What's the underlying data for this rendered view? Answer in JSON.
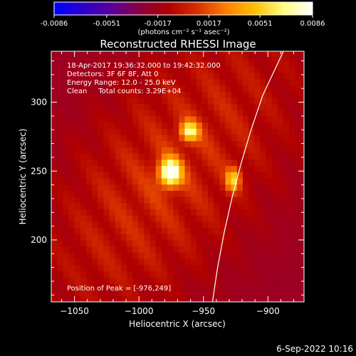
{
  "colorbar": {
    "tick_labels": [
      "-0.0086",
      "-0.0051",
      "-0.0017",
      "0.0017",
      "0.0051",
      "0.0086"
    ],
    "tick_values": [
      -0.0086,
      -0.0051,
      -0.0017,
      0.0017,
      0.0051,
      0.0086
    ],
    "range": [
      -0.0086,
      0.0086
    ],
    "units_label": "(photons cm⁻² s⁻¹ asec⁻²)",
    "colors": [
      "#0000ff",
      "#2a00cc",
      "#5a009a",
      "#8a0040",
      "#b00000",
      "#d83000",
      "#ff8000",
      "#ffc000",
      "#ffff80",
      "#ffffff"
    ]
  },
  "title": "Reconstructed RHESSI Image",
  "annotations": {
    "time_range": "18-Apr-2017 19:36:32.000 to 19:42:32.000",
    "detectors": "Detectors: 3F 6F 8F, Att 0",
    "energy": "Energy Range: 12.0 - 25.0 keV",
    "clean": "Clean     Total counts: 3.29E+04",
    "peak": "Position of Peak = [-976,249]"
  },
  "footer_timestamp": "6-Sep-2022 10:16",
  "chart_data": {
    "type": "heatmap",
    "title": "Reconstructed RHESSI Image",
    "xlabel": "Heliocentric X (arcsec)",
    "ylabel": "Heliocentric Y (arcsec)",
    "xlim": [
      -1068,
      -872
    ],
    "ylim": [
      155,
      337
    ],
    "x_ticks": [
      -1050,
      -1000,
      -950,
      -900
    ],
    "x_tick_labels": [
      "−1050",
      "−1000",
      "−950",
      "−900"
    ],
    "y_ticks": [
      200,
      250,
      300
    ],
    "y_tick_labels": [
      "200",
      "250",
      "300"
    ],
    "peak": [
      -976,
      249
    ],
    "sources": [
      {
        "x": -976,
        "y": 249,
        "peak": 0.0086,
        "sx": 6,
        "sy": 7
      },
      {
        "x": -961,
        "y": 279,
        "peak": 0.0062,
        "sx": 5,
        "sy": 5
      },
      {
        "x": -927,
        "y": 244,
        "peak": 0.005,
        "sx": 4,
        "sy": 6
      }
    ],
    "limb": [
      [
        -943,
        155
      ],
      [
        -939,
        180
      ],
      [
        -934,
        205
      ],
      [
        -928,
        230
      ],
      [
        -921,
        255
      ],
      [
        -913,
        280
      ],
      [
        -904,
        305
      ],
      [
        -894,
        325
      ],
      [
        -888,
        337
      ]
    ]
  }
}
